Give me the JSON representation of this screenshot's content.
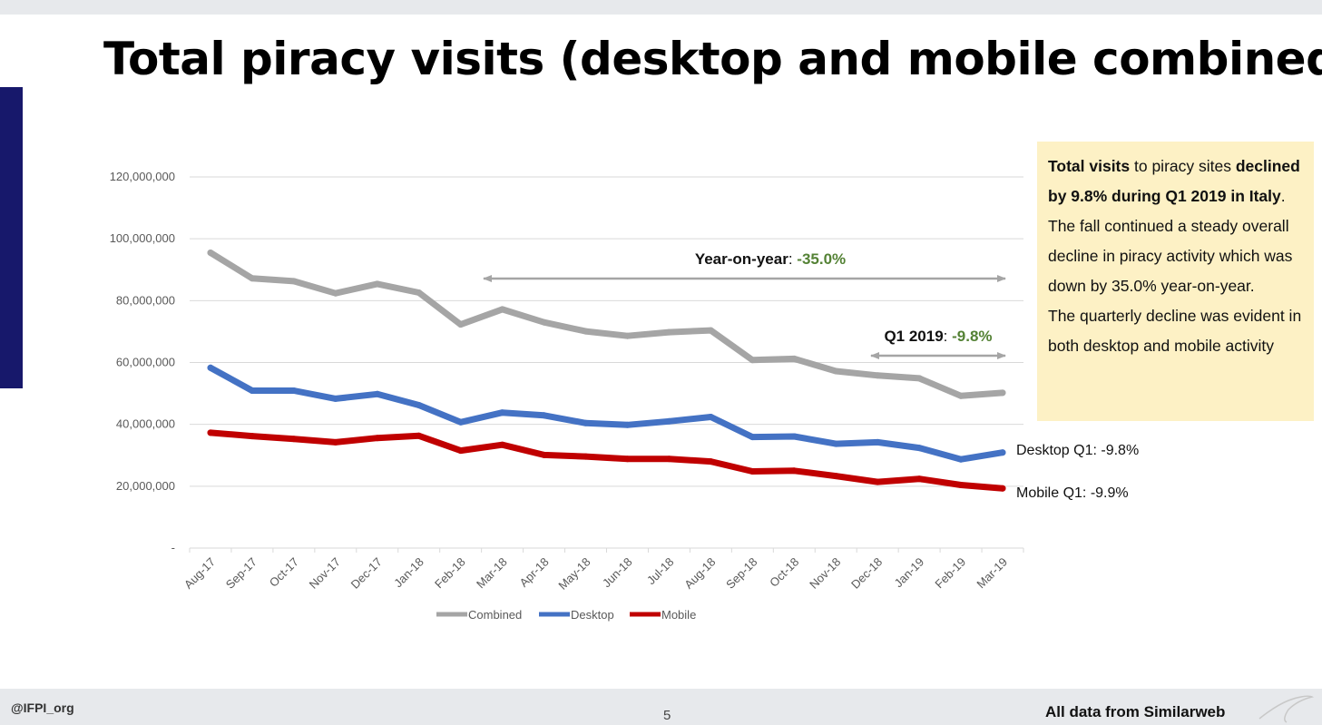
{
  "page": {
    "title": "Total piracy visits (desktop and mobile combined)",
    "handle": "@IFPI_org",
    "page_number": "5",
    "source": "All data from Similarweb"
  },
  "textbox": {
    "seg1_bold": "Total visits",
    "seg2": " to piracy sites ",
    "seg3_bold": "declined by 9.8% during Q1 2019 in Italy",
    "seg4": ". The fall continued a steady overall decline in piracy activity which was down by 35.0% year-on-year.",
    "seg5": "The quarterly decline was evident in both desktop and mobile activity"
  },
  "annotations": {
    "yoy_label": "Year-on-year",
    "yoy_sep": ": ",
    "yoy_value": "-35.0%",
    "q1_label": "Q1 2019",
    "q1_sep": ": ",
    "q1_value": "-9.8%",
    "desktop_q1": "Desktop Q1: -9.8%",
    "mobile_q1": "Mobile Q1: -9.9%"
  },
  "colors": {
    "combined": "#a5a5a5",
    "desktop": "#4472c4",
    "mobile": "#c00000",
    "grid": "#d9d9d9",
    "axis_text": "#595959",
    "annotation_green": "#548235",
    "arrow": "#a5a5a5"
  },
  "chart_data": {
    "type": "line",
    "categories": [
      "Aug-17",
      "Sep-17",
      "Oct-17",
      "Nov-17",
      "Dec-17",
      "Jan-18",
      "Feb-18",
      "Mar-18",
      "Apr-18",
      "May-18",
      "Jun-18",
      "Jul-18",
      "Aug-18",
      "Sep-18",
      "Oct-18",
      "Nov-18",
      "Dec-18",
      "Jan-19",
      "Feb-19",
      "Mar-19"
    ],
    "series": [
      {
        "name": "Combined",
        "values": [
          95500000,
          87200000,
          86300000,
          82400000,
          85400000,
          82600000,
          72300000,
          77200000,
          73000000,
          70100000,
          68600000,
          69800000,
          70400000,
          60800000,
          61200000,
          57200000,
          55800000,
          54900000,
          49200000,
          50200000
        ]
      },
      {
        "name": "Desktop",
        "values": [
          58300000,
          50900000,
          50900000,
          48300000,
          49800000,
          46200000,
          40700000,
          43800000,
          42900000,
          40400000,
          39800000,
          41000000,
          42400000,
          35900000,
          36100000,
          33700000,
          34200000,
          32400000,
          28700000,
          30900000
        ]
      },
      {
        "name": "Mobile",
        "values": [
          37300000,
          36200000,
          35300000,
          34200000,
          35600000,
          36300000,
          31500000,
          33400000,
          30100000,
          29600000,
          28800000,
          28800000,
          28000000,
          24800000,
          25000000,
          23300000,
          21400000,
          22400000,
          20400000,
          19300000
        ]
      }
    ],
    "y_ticks": [
      "-",
      "20,000,000",
      "40,000,000",
      "60,000,000",
      "80,000,000",
      "100,000,000",
      "120,000,000"
    ],
    "ylim": [
      0,
      120000000
    ],
    "grid": true,
    "legend": "bottom"
  }
}
